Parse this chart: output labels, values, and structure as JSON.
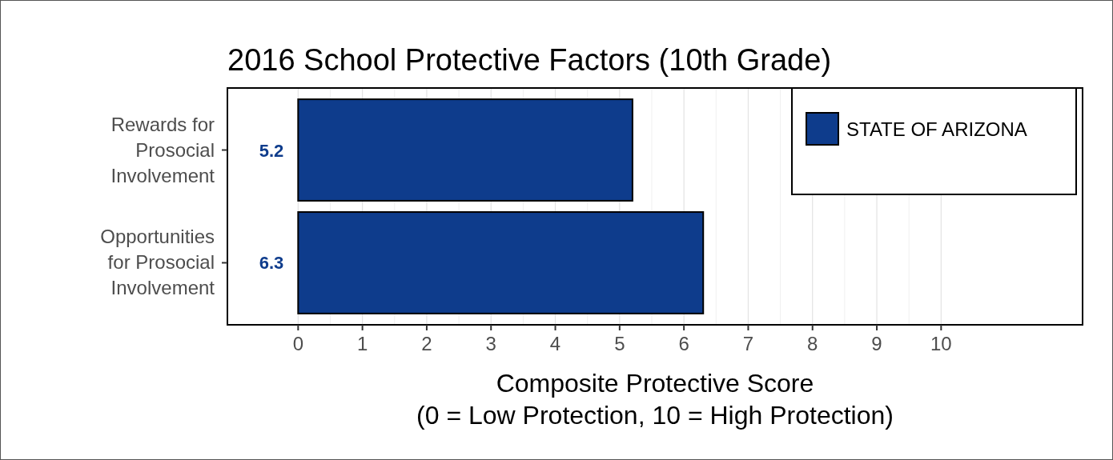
{
  "chart_data": {
    "type": "bar",
    "orientation": "horizontal",
    "title": "2016 School Protective Factors (10th Grade)",
    "xlabel": "Composite Protective Score\n(0 = Low Protection, 10 = High Protection)",
    "categories": [
      "Rewards for Prosocial Involvement",
      "Opportunities for Prosocial Involvement"
    ],
    "series": [
      {
        "name": "STATE OF ARIZONA",
        "color": "#0e3c8c",
        "values": [
          5.2,
          6.3
        ]
      }
    ],
    "xlim": [
      -1.1,
      12.2
    ],
    "xticks": [
      0,
      1,
      2,
      3,
      4,
      5,
      6,
      7,
      8,
      9,
      10
    ],
    "grid": "x",
    "legend": "top right",
    "data_labels": true
  }
}
